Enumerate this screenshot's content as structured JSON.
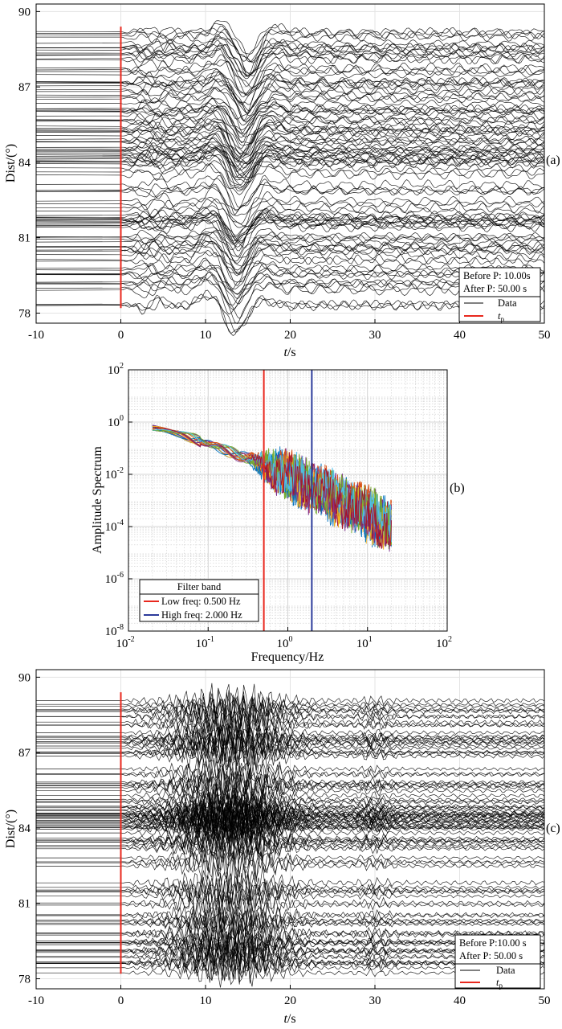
{
  "chart_data": [
    {
      "type": "line",
      "panel_label": "(a)",
      "xlabel_var": "t",
      "xlabel_unit": "/s",
      "ylabel": "Dist/(°)",
      "xlim": [
        -10,
        50
      ],
      "ylim": [
        77.6,
        90.3
      ],
      "x_ticks": [
        "-10",
        "0",
        "10",
        "20",
        "30",
        "40",
        "50"
      ],
      "y_ticks": [
        "78",
        "81",
        "84",
        "87",
        "90"
      ],
      "grid": true,
      "marker_line": {
        "x": 0,
        "y_from": 78.2,
        "y_to": 89.4,
        "color": "#e8281e"
      },
      "traces": {
        "count": 110,
        "dist_min": 78.2,
        "dist_max": 89.4,
        "dense_cluster": 84.3,
        "signal_start_s": 0
      },
      "info_box": {
        "line1": "Before P: 10.00s",
        "line2": "After P: 50.00 s"
      },
      "legend": {
        "data_label": "Data",
        "tp_var": "t",
        "tp_sub": "p",
        "placement": "bottom-right"
      }
    },
    {
      "type": "line",
      "scale": "log-log",
      "panel_label": "(b)",
      "xlabel": "Frequency/Hz",
      "ylabel": "Amplitude Spectrum",
      "xlim": [
        0.01,
        100
      ],
      "ylim": [
        1e-08,
        100
      ],
      "x_ticks": [
        {
          "base": "10",
          "exp": "-2"
        },
        {
          "base": "10",
          "exp": "-1"
        },
        {
          "base": "10",
          "exp": "0"
        },
        {
          "base": "10",
          "exp": "1"
        },
        {
          "base": "10",
          "exp": "2"
        }
      ],
      "y_ticks": [
        {
          "base": "10",
          "exp": "-8"
        },
        {
          "base": "10",
          "exp": "-6"
        },
        {
          "base": "10",
          "exp": "-4"
        },
        {
          "base": "10",
          "exp": "-2"
        },
        {
          "base": "10",
          "exp": "0"
        },
        {
          "base": "10",
          "exp": "2"
        }
      ],
      "grid": true,
      "freq_range": [
        0.02,
        20
      ],
      "spectrum_level_start": 0.6,
      "spectrum_level_end": 0.0001,
      "series_colors": [
        "#0072bd",
        "#d95319",
        "#edb120",
        "#7e2f8e",
        "#77ac30",
        "#4dbeee",
        "#a2142f"
      ],
      "filter_lines": [
        {
          "freq": 0.5,
          "color": "#e8281e"
        },
        {
          "freq": 2.0,
          "color": "#2b3a9a"
        }
      ],
      "legend": {
        "title": "Filter band",
        "low_label": "Low freq: 0.500 Hz",
        "high_label": "High freq: 2.000 Hz",
        "placement": "bottom-left"
      }
    },
    {
      "type": "line",
      "panel_label": "(c)",
      "xlabel_var": "t",
      "xlabel_unit": "/s",
      "ylabel": "Dist/(°)",
      "xlim": [
        -10,
        50
      ],
      "ylim": [
        77.6,
        90.3
      ],
      "x_ticks": [
        "-10",
        "0",
        "10",
        "20",
        "30",
        "40",
        "50"
      ],
      "y_ticks": [
        "78",
        "81",
        "84",
        "87",
        "90"
      ],
      "grid": true,
      "marker_line": {
        "x": 0,
        "y_from": 78.2,
        "y_to": 89.4,
        "color": "#e8281e"
      },
      "traces": {
        "count": 110,
        "dist_min": 78.2,
        "dist_max": 89.4,
        "dense_cluster": 84.3,
        "signal_start_s": 0
      },
      "info_box": {
        "line1": "Before P:10.00 s",
        "line2": "After P: 50.00 s"
      },
      "legend": {
        "data_label": "Data",
        "tp_var": "t",
        "tp_sub": "p",
        "placement": "bottom-right"
      }
    }
  ]
}
